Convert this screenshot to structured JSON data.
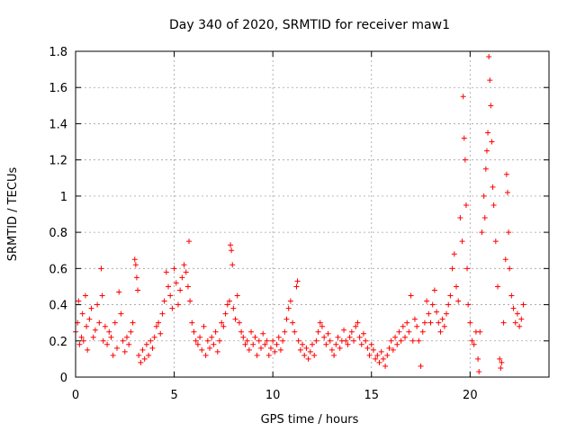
{
  "chart_data": {
    "type": "scatter",
    "title": "Day 340 of 2020, SRMTID for receiver maw1",
    "xlabel": "GPS time / hours",
    "ylabel": "SRMTID / TECUs",
    "xlim": [
      0,
      24
    ],
    "ylim": [
      0,
      1.8
    ],
    "xticks": [
      0,
      5,
      10,
      15,
      20
    ],
    "xtick_labels": [
      "0",
      "5",
      "10",
      "15",
      "20"
    ],
    "yticks": [
      0,
      0.2,
      0.4,
      0.6,
      0.8,
      1.0,
      1.2,
      1.4,
      1.6,
      1.8
    ],
    "ytick_labels": [
      "0",
      "0.2",
      "0.4",
      "0.6",
      "0.8",
      "1",
      "1.2",
      "1.4",
      "1.6",
      "1.8"
    ],
    "grid": true,
    "marker": "plus",
    "series": [
      {
        "name": "SRMTID",
        "color": "#ff0000",
        "points": [
          [
            0.0,
            0.25
          ],
          [
            0.1,
            0.3
          ],
          [
            0.15,
            0.42
          ],
          [
            0.2,
            0.18
          ],
          [
            0.3,
            0.22
          ],
          [
            0.35,
            0.35
          ],
          [
            0.4,
            0.2
          ],
          [
            0.5,
            0.45
          ],
          [
            0.55,
            0.28
          ],
          [
            0.6,
            0.15
          ],
          [
            0.7,
            0.32
          ],
          [
            0.8,
            0.38
          ],
          [
            0.9,
            0.22
          ],
          [
            1.0,
            0.26
          ],
          [
            1.1,
            0.4
          ],
          [
            1.2,
            0.3
          ],
          [
            1.3,
            0.6
          ],
          [
            1.35,
            0.45
          ],
          [
            1.4,
            0.2
          ],
          [
            1.5,
            0.28
          ],
          [
            1.6,
            0.18
          ],
          [
            1.7,
            0.25
          ],
          [
            1.8,
            0.22
          ],
          [
            1.9,
            0.12
          ],
          [
            2.0,
            0.3
          ],
          [
            2.1,
            0.16
          ],
          [
            2.2,
            0.47
          ],
          [
            2.3,
            0.35
          ],
          [
            2.4,
            0.2
          ],
          [
            2.5,
            0.14
          ],
          [
            2.6,
            0.22
          ],
          [
            2.7,
            0.18
          ],
          [
            2.8,
            0.25
          ],
          [
            2.9,
            0.3
          ],
          [
            3.0,
            0.65
          ],
          [
            3.05,
            0.62
          ],
          [
            3.1,
            0.55
          ],
          [
            3.15,
            0.48
          ],
          [
            3.2,
            0.12
          ],
          [
            3.3,
            0.08
          ],
          [
            3.4,
            0.15
          ],
          [
            3.5,
            0.1
          ],
          [
            3.6,
            0.18
          ],
          [
            3.7,
            0.12
          ],
          [
            3.8,
            0.2
          ],
          [
            3.9,
            0.16
          ],
          [
            4.0,
            0.22
          ],
          [
            4.1,
            0.28
          ],
          [
            4.2,
            0.3
          ],
          [
            4.3,
            0.24
          ],
          [
            4.4,
            0.35
          ],
          [
            4.5,
            0.42
          ],
          [
            4.6,
            0.58
          ],
          [
            4.7,
            0.5
          ],
          [
            4.8,
            0.45
          ],
          [
            4.9,
            0.38
          ],
          [
            5.0,
            0.6
          ],
          [
            5.1,
            0.52
          ],
          [
            5.2,
            0.4
          ],
          [
            5.3,
            0.48
          ],
          [
            5.4,
            0.55
          ],
          [
            5.5,
            0.62
          ],
          [
            5.6,
            0.58
          ],
          [
            5.7,
            0.5
          ],
          [
            5.75,
            0.75
          ],
          [
            5.8,
            0.42
          ],
          [
            5.9,
            0.3
          ],
          [
            6.0,
            0.25
          ],
          [
            6.1,
            0.2
          ],
          [
            6.2,
            0.18
          ],
          [
            6.3,
            0.22
          ],
          [
            6.4,
            0.15
          ],
          [
            6.5,
            0.28
          ],
          [
            6.6,
            0.12
          ],
          [
            6.7,
            0.2
          ],
          [
            6.8,
            0.16
          ],
          [
            6.9,
            0.22
          ],
          [
            7.0,
            0.18
          ],
          [
            7.1,
            0.25
          ],
          [
            7.2,
            0.14
          ],
          [
            7.3,
            0.2
          ],
          [
            7.4,
            0.3
          ],
          [
            7.5,
            0.28
          ],
          [
            7.6,
            0.35
          ],
          [
            7.7,
            0.4
          ],
          [
            7.8,
            0.42
          ],
          [
            7.85,
            0.73
          ],
          [
            7.9,
            0.7
          ],
          [
            7.95,
            0.62
          ],
          [
            8.0,
            0.38
          ],
          [
            8.1,
            0.32
          ],
          [
            8.2,
            0.45
          ],
          [
            8.3,
            0.3
          ],
          [
            8.4,
            0.25
          ],
          [
            8.5,
            0.22
          ],
          [
            8.6,
            0.18
          ],
          [
            8.7,
            0.2
          ],
          [
            8.8,
            0.15
          ],
          [
            8.9,
            0.25
          ],
          [
            9.0,
            0.18
          ],
          [
            9.1,
            0.22
          ],
          [
            9.2,
            0.12
          ],
          [
            9.3,
            0.2
          ],
          [
            9.4,
            0.16
          ],
          [
            9.5,
            0.24
          ],
          [
            9.6,
            0.18
          ],
          [
            9.7,
            0.2
          ],
          [
            9.8,
            0.12
          ],
          [
            9.9,
            0.16
          ],
          [
            10.0,
            0.2
          ],
          [
            10.1,
            0.14
          ],
          [
            10.2,
            0.18
          ],
          [
            10.3,
            0.22
          ],
          [
            10.4,
            0.15
          ],
          [
            10.5,
            0.2
          ],
          [
            10.6,
            0.25
          ],
          [
            10.7,
            0.32
          ],
          [
            10.8,
            0.38
          ],
          [
            10.9,
            0.42
          ],
          [
            11.0,
            0.3
          ],
          [
            11.1,
            0.25
          ],
          [
            11.2,
            0.5
          ],
          [
            11.25,
            0.53
          ],
          [
            11.3,
            0.2
          ],
          [
            11.4,
            0.15
          ],
          [
            11.5,
            0.18
          ],
          [
            11.6,
            0.12
          ],
          [
            11.7,
            0.16
          ],
          [
            11.8,
            0.1
          ],
          [
            11.9,
            0.14
          ],
          [
            12.0,
            0.18
          ],
          [
            12.1,
            0.12
          ],
          [
            12.2,
            0.2
          ],
          [
            12.3,
            0.25
          ],
          [
            12.4,
            0.3
          ],
          [
            12.5,
            0.28
          ],
          [
            12.6,
            0.22
          ],
          [
            12.7,
            0.18
          ],
          [
            12.8,
            0.24
          ],
          [
            12.9,
            0.2
          ],
          [
            13.0,
            0.15
          ],
          [
            13.1,
            0.12
          ],
          [
            13.2,
            0.18
          ],
          [
            13.3,
            0.22
          ],
          [
            13.4,
            0.16
          ],
          [
            13.5,
            0.2
          ],
          [
            13.6,
            0.26
          ],
          [
            13.7,
            0.2
          ],
          [
            13.8,
            0.18
          ],
          [
            13.9,
            0.22
          ],
          [
            14.0,
            0.25
          ],
          [
            14.1,
            0.2
          ],
          [
            14.2,
            0.28
          ],
          [
            14.3,
            0.3
          ],
          [
            14.4,
            0.22
          ],
          [
            14.5,
            0.18
          ],
          [
            14.6,
            0.24
          ],
          [
            14.7,
            0.2
          ],
          [
            14.8,
            0.16
          ],
          [
            14.9,
            0.12
          ],
          [
            15.0,
            0.18
          ],
          [
            15.1,
            0.15
          ],
          [
            15.2,
            0.1
          ],
          [
            15.3,
            0.12
          ],
          [
            15.4,
            0.08
          ],
          [
            15.5,
            0.14
          ],
          [
            15.6,
            0.1
          ],
          [
            15.7,
            0.06
          ],
          [
            15.8,
            0.12
          ],
          [
            15.9,
            0.16
          ],
          [
            16.0,
            0.2
          ],
          [
            16.1,
            0.15
          ],
          [
            16.2,
            0.22
          ],
          [
            16.3,
            0.18
          ],
          [
            16.4,
            0.25
          ],
          [
            16.5,
            0.2
          ],
          [
            16.6,
            0.28
          ],
          [
            16.7,
            0.22
          ],
          [
            16.8,
            0.3
          ],
          [
            16.9,
            0.25
          ],
          [
            17.0,
            0.45
          ],
          [
            17.1,
            0.2
          ],
          [
            17.2,
            0.32
          ],
          [
            17.3,
            0.28
          ],
          [
            17.4,
            0.2
          ],
          [
            17.5,
            0.06
          ],
          [
            17.6,
            0.25
          ],
          [
            17.7,
            0.3
          ],
          [
            17.8,
            0.42
          ],
          [
            17.9,
            0.35
          ],
          [
            18.0,
            0.3
          ],
          [
            18.1,
            0.4
          ],
          [
            18.2,
            0.48
          ],
          [
            18.3,
            0.36
          ],
          [
            18.4,
            0.3
          ],
          [
            18.5,
            0.25
          ],
          [
            18.6,
            0.32
          ],
          [
            18.7,
            0.28
          ],
          [
            18.8,
            0.35
          ],
          [
            18.9,
            0.4
          ],
          [
            19.0,
            0.45
          ],
          [
            19.1,
            0.6
          ],
          [
            19.2,
            0.68
          ],
          [
            19.3,
            0.5
          ],
          [
            19.4,
            0.42
          ],
          [
            19.5,
            0.88
          ],
          [
            19.6,
            0.75
          ],
          [
            19.65,
            1.55
          ],
          [
            19.7,
            1.32
          ],
          [
            19.75,
            1.2
          ],
          [
            19.8,
            0.95
          ],
          [
            19.85,
            0.6
          ],
          [
            19.9,
            0.4
          ],
          [
            20.0,
            0.3
          ],
          [
            20.1,
            0.2
          ],
          [
            20.2,
            0.18
          ],
          [
            20.3,
            0.25
          ],
          [
            20.4,
            0.1
          ],
          [
            20.45,
            0.03
          ],
          [
            20.5,
            0.25
          ],
          [
            20.6,
            0.8
          ],
          [
            20.7,
            1.0
          ],
          [
            20.75,
            0.88
          ],
          [
            20.8,
            1.15
          ],
          [
            20.85,
            1.25
          ],
          [
            20.9,
            1.35
          ],
          [
            20.95,
            1.77
          ],
          [
            21.0,
            1.64
          ],
          [
            21.05,
            1.5
          ],
          [
            21.1,
            1.3
          ],
          [
            21.15,
            1.05
          ],
          [
            21.2,
            0.95
          ],
          [
            21.3,
            0.75
          ],
          [
            21.4,
            0.5
          ],
          [
            21.5,
            0.1
          ],
          [
            21.55,
            0.05
          ],
          [
            21.6,
            0.08
          ],
          [
            21.7,
            0.3
          ],
          [
            21.8,
            0.65
          ],
          [
            21.85,
            1.12
          ],
          [
            21.9,
            1.02
          ],
          [
            21.95,
            0.8
          ],
          [
            22.0,
            0.6
          ],
          [
            22.1,
            0.45
          ],
          [
            22.2,
            0.38
          ],
          [
            22.3,
            0.3
          ],
          [
            22.4,
            0.35
          ],
          [
            22.5,
            0.28
          ],
          [
            22.6,
            0.32
          ],
          [
            22.7,
            0.4
          ]
        ]
      }
    ]
  }
}
